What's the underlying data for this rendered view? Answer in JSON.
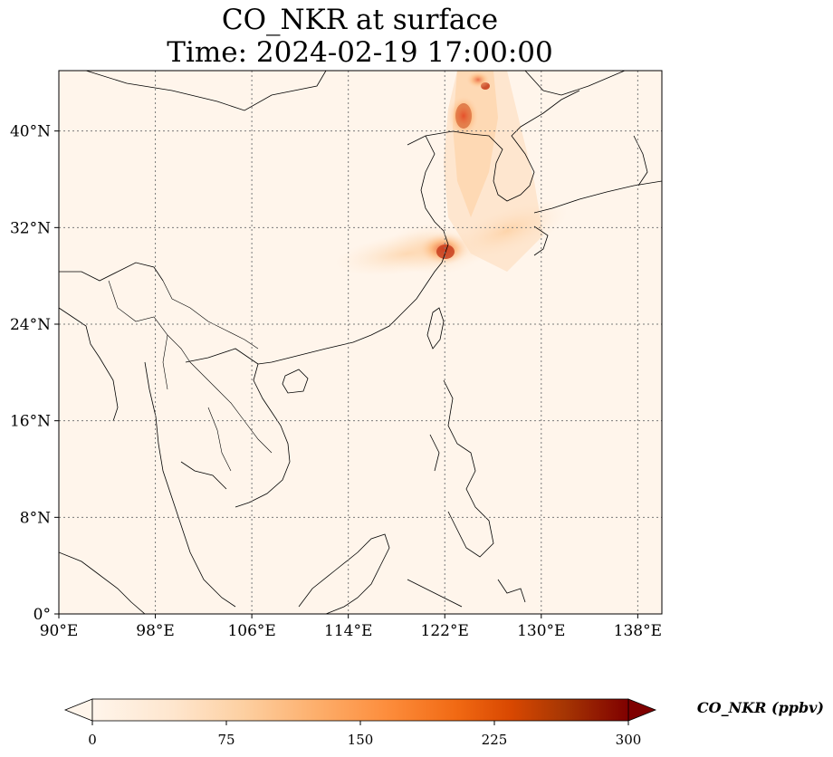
{
  "title": {
    "line1": "CO_NKR at surface",
    "line2": "Time: 2024-02-19 17:00:00"
  },
  "map": {
    "lon_range": [
      90,
      140
    ],
    "lat_range": [
      0,
      45
    ],
    "lon_ticks": [
      90,
      98,
      106,
      114,
      122,
      130,
      138
    ],
    "lon_tick_labels": [
      "90°E",
      "98°E",
      "106°E",
      "114°E",
      "122°E",
      "130°E",
      "138°E"
    ],
    "lat_ticks": [
      0,
      8,
      16,
      24,
      32,
      40
    ],
    "lat_tick_labels": [
      "0°",
      "8°N",
      "16°N",
      "24°N",
      "32°N",
      "40°N"
    ],
    "grid": true,
    "background_color": "#fff5eb"
  },
  "colorbar": {
    "label": "CO_NKR (ppbv)",
    "min": 0,
    "max": 300,
    "ticks": [
      0,
      75,
      150,
      225,
      300
    ],
    "tick_labels": [
      "0",
      "75",
      "150",
      "225",
      "300"
    ],
    "extend": "both",
    "colormap": "OrRd",
    "colors": [
      "#fff5eb",
      "#fee6ce",
      "#fdd0a2",
      "#fdae6b",
      "#fd8d3c",
      "#f16913",
      "#d94801",
      "#a63603",
      "#7f0000"
    ]
  }
}
